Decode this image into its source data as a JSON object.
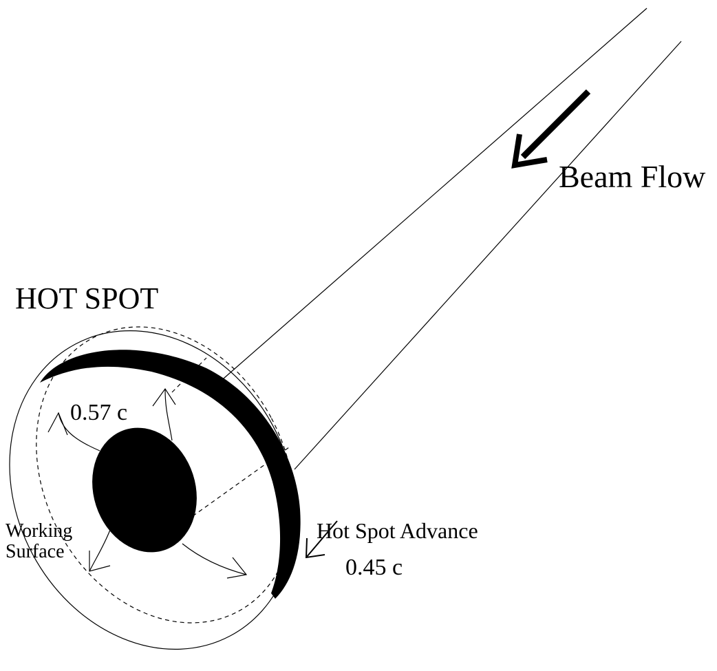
{
  "labels": {
    "beam_flow": "Beam Flow",
    "hot_spot": "HOT SPOT",
    "inner_speed": "0.57 c",
    "working_surface": [
      "Working",
      "Surface"
    ],
    "advance": "Hot Spot Advance",
    "advance_speed": "0.45 c"
  }
}
